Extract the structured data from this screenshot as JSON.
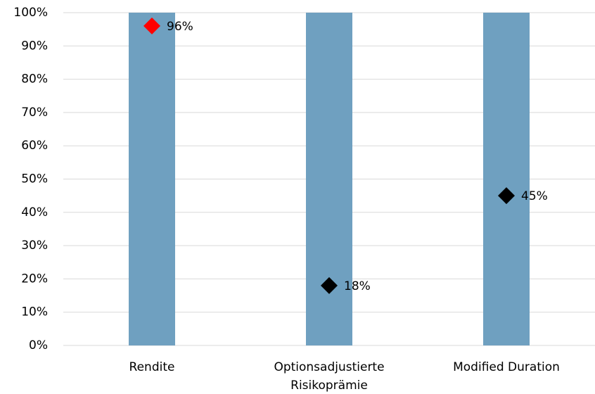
{
  "chart_data": {
    "type": "range_marker",
    "categories": [
      "Rendite",
      "Optionsadjustierte Risikoprämie",
      "Modified Duration"
    ],
    "series": [
      {
        "values": [
          100,
          100,
          100
        ],
        "color": "#6fa0c0"
      },
      {
        "values": [
          96,
          18,
          45
        ],
        "value_labels": [
          "96%",
          "18%",
          "45%"
        ],
        "colors": [
          "#ff0000",
          "#000000",
          "#000000"
        ]
      }
    ],
    "ylim": [
      0,
      100
    ],
    "yticks": [
      {
        "value": 0,
        "label": "0%"
      },
      {
        "value": 10,
        "label": "10%"
      },
      {
        "value": 20,
        "label": "20%"
      },
      {
        "value": 30,
        "label": "30%"
      },
      {
        "value": 40,
        "label": "40%"
      },
      {
        "value": 50,
        "label": "50%"
      },
      {
        "value": 60,
        "label": "60%"
      },
      {
        "value": 70,
        "label": "70%"
      },
      {
        "value": 80,
        "label": "80%"
      },
      {
        "value": 90,
        "label": "90%"
      },
      {
        "value": 100,
        "label": "100%"
      }
    ],
    "grid": true
  }
}
